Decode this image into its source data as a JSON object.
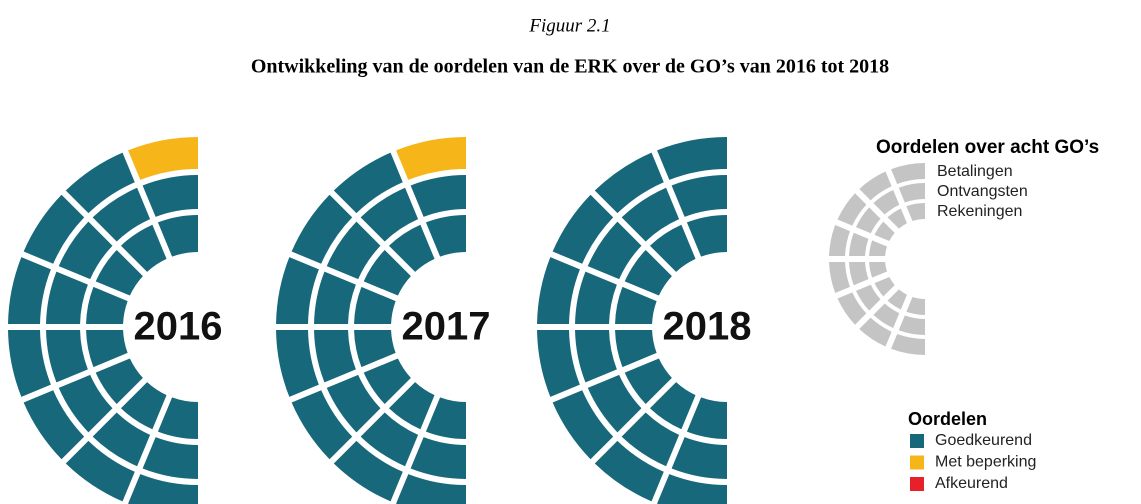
{
  "figure": "Figuur 2.1",
  "title": "Ontwikkeling van de oordelen van de ERK over de GO’s van 2016 tot 2018",
  "years": [
    {
      "label": "2016",
      "rings": [
        [
          1,
          0,
          0,
          0,
          0,
          0,
          0,
          0
        ],
        [
          0,
          0,
          0,
          0,
          0,
          0,
          0,
          0
        ],
        [
          0,
          0,
          0,
          0,
          0,
          0,
          0,
          0
        ]
      ]
    },
    {
      "label": "2017",
      "rings": [
        [
          1,
          0,
          0,
          0,
          0,
          0,
          0,
          0
        ],
        [
          0,
          0,
          0,
          0,
          0,
          0,
          0,
          0
        ],
        [
          0,
          0,
          0,
          0,
          0,
          0,
          0,
          0
        ]
      ]
    },
    {
      "label": "2018",
      "rings": [
        [
          0,
          0,
          0,
          0,
          0,
          0,
          0,
          0
        ],
        [
          0,
          0,
          0,
          0,
          0,
          0,
          0,
          0
        ],
        [
          0,
          0,
          0,
          0,
          0,
          0,
          0,
          0
        ]
      ]
    }
  ],
  "key": {
    "title": "Oordelen over acht GO’s",
    "rings": [
      "Betalingen",
      "Ontvangsten",
      "Rekeningen"
    ]
  },
  "legend": {
    "title": "Oordelen",
    "items": [
      {
        "label": "Goedkeurend",
        "color": "#17687a"
      },
      {
        "label": "Met beperking",
        "color": "#f6b619"
      },
      {
        "label": "Afkeurend",
        "color": "#e8202a"
      }
    ]
  }
}
